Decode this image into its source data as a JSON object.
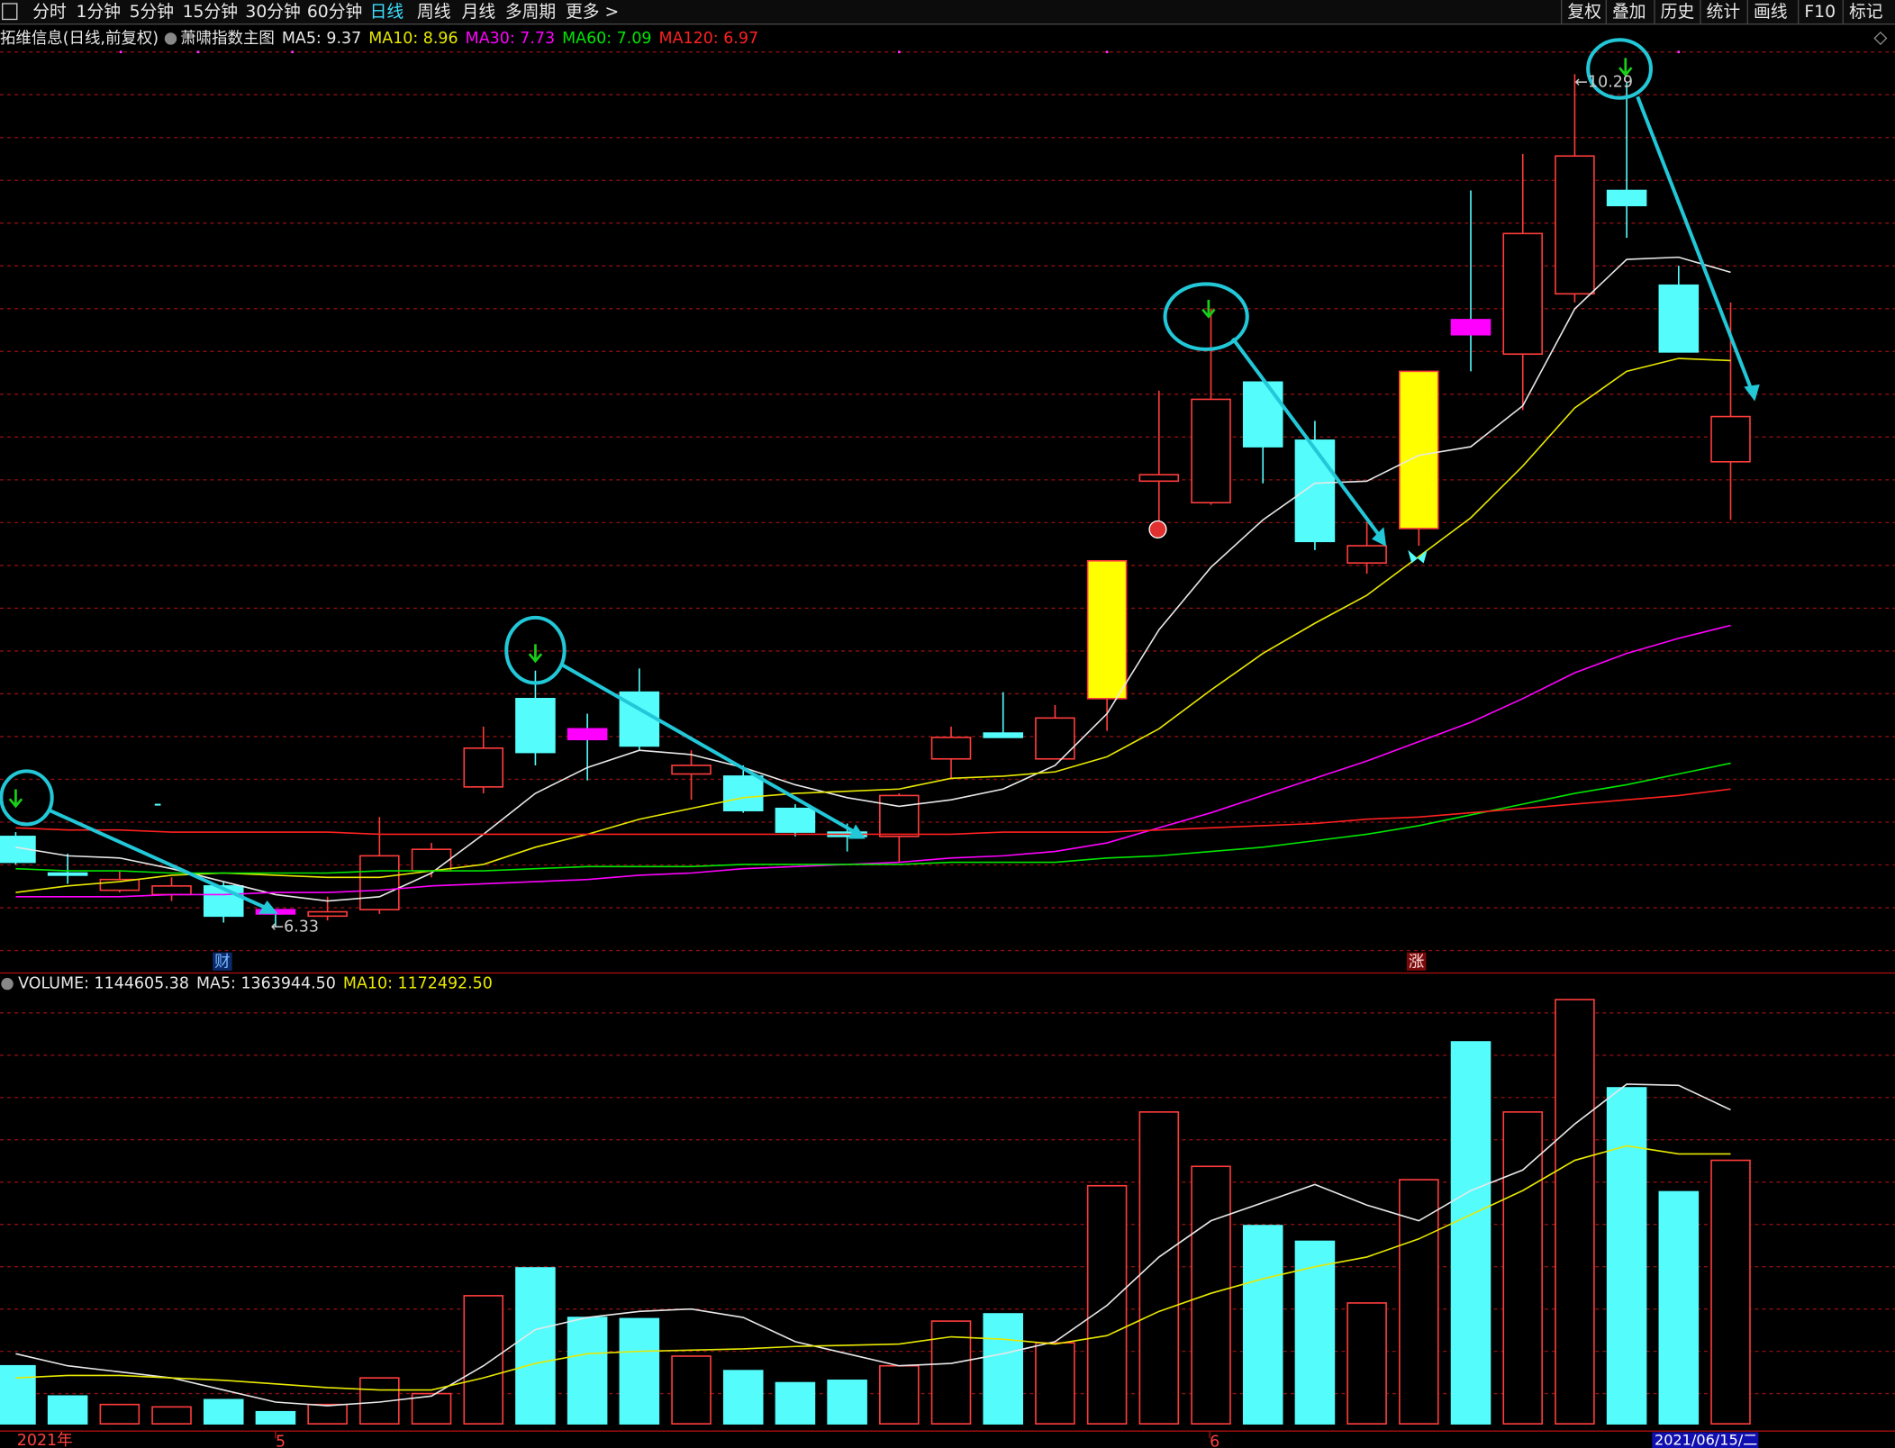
{
  "toolbar": {
    "periods": [
      {
        "label": "分时",
        "active": false
      },
      {
        "label": "1分钟",
        "active": false
      },
      {
        "label": "5分钟",
        "active": false
      },
      {
        "label": "15分钟",
        "active": false
      },
      {
        "label": "30分钟",
        "active": false
      },
      {
        "label": "60分钟",
        "active": false
      },
      {
        "label": "日线",
        "active": true
      },
      {
        "label": "周线",
        "active": false
      },
      {
        "label": "月线",
        "active": false
      },
      {
        "label": "多周期",
        "active": false
      },
      {
        "label": "更多 >",
        "active": false
      }
    ],
    "tools": [
      "复权",
      "叠加",
      "历史",
      "统计",
      "画线",
      "F10",
      "标记"
    ]
  },
  "chart_data": {
    "type": "candlestick",
    "title": "拓维信息(日线,前复权)",
    "indicator": "萧啸指数主图",
    "up_color": "#ff3c3c",
    "down_color": "#54fcfc",
    "open": [
      6.75,
      6.58,
      6.5,
      6.48,
      6.52,
      6.41,
      6.38,
      6.41,
      6.59,
      6.98,
      7.39,
      7.25,
      7.42,
      7.04,
      7.03,
      6.88,
      6.77,
      6.75,
      7.11,
      7.23,
      7.11,
      7.39,
      8.4,
      8.3,
      8.86,
      8.59,
      8.02,
      8.18,
      9.15,
      8.99,
      9.27,
      9.75,
      9.31,
      8.49
    ],
    "high": [
      6.77,
      6.67,
      6.59,
      6.56,
      6.54,
      6.41,
      6.47,
      6.84,
      6.72,
      7.26,
      7.52,
      7.32,
      7.53,
      7.15,
      7.08,
      6.9,
      6.81,
      6.95,
      7.26,
      7.42,
      7.36,
      8.03,
      8.82,
      9.2,
      8.86,
      8.68,
      8.21,
      8.91,
      9.75,
      9.92,
      10.29,
      10.25,
      9.4,
      9.23
    ],
    "low": [
      6.62,
      6.53,
      6.49,
      6.45,
      6.35,
      6.33,
      6.36,
      6.39,
      6.56,
      6.95,
      7.08,
      7.01,
      7.15,
      6.92,
      6.86,
      6.75,
      6.68,
      6.63,
      7.02,
      7.21,
      7.11,
      7.24,
      8.2,
      8.29,
      8.39,
      8.08,
      7.97,
      8.1,
      8.91,
      8.73,
      9.23,
      9.53,
      9.0,
      8.22
    ],
    "close": [
      6.63,
      6.57,
      6.55,
      6.52,
      6.38,
      6.39,
      6.4,
      6.66,
      6.69,
      7.16,
      7.14,
      7.2,
      7.17,
      7.08,
      6.87,
      6.77,
      6.75,
      6.94,
      7.21,
      7.21,
      7.3,
      8.03,
      8.43,
      8.78,
      8.56,
      8.12,
      8.1,
      8.91,
      9.08,
      9.55,
      9.91,
      9.68,
      9.0,
      8.7
    ],
    "colors": [
      "#54fcfc",
      "#54fcfc",
      "#ff3c3c",
      "#ff3c3c",
      "#54fcfc",
      "#ff00ff",
      "#ff3c3c",
      "#ff3c3c",
      "#ff3c3c",
      "#ff3c3c",
      "#54fcfc",
      "#ff00ff",
      "#54fcfc",
      "#ff3c3c",
      "#54fcfc",
      "#54fcfc",
      "#54fcfc",
      "#ff3c3c",
      "#ff3c3c",
      "#54fcfc",
      "#ff3c3c",
      "#ffff00",
      "#ff3c3c",
      "#ff3c3c",
      "#54fcfc",
      "#54fcfc",
      "#ff3c3c",
      "#ffff00",
      "#ff00ff",
      "#ff3c3c",
      "#ff3c3c",
      "#54fcfc",
      "#54fcfc",
      "#ff3c3c"
    ],
    "ylim": [
      6.2,
      10.41
    ],
    "series": [
      {
        "name": "MA5: 9.37",
        "color": "#e8e8e8",
        "values": [
          6.7,
          6.66,
          6.65,
          6.6,
          6.54,
          6.48,
          6.45,
          6.47,
          6.58,
          6.76,
          6.95,
          7.07,
          7.15,
          7.13,
          7.07,
          6.99,
          6.93,
          6.89,
          6.92,
          6.97,
          7.08,
          7.32,
          7.71,
          8.0,
          8.22,
          8.39,
          8.4,
          8.52,
          8.56,
          8.75,
          9.2,
          9.43,
          9.44,
          9.37
        ]
      },
      {
        "name": "MA10: 8.96",
        "color": "#e8e800",
        "values": [
          6.49,
          6.52,
          6.54,
          6.57,
          6.58,
          6.57,
          6.56,
          6.56,
          6.59,
          6.62,
          6.7,
          6.76,
          6.83,
          6.88,
          6.93,
          6.95,
          6.96,
          6.97,
          7.02,
          7.03,
          7.05,
          7.12,
          7.25,
          7.43,
          7.6,
          7.74,
          7.87,
          8.05,
          8.23,
          8.47,
          8.74,
          8.91,
          8.97,
          8.96
        ]
      },
      {
        "name": "MA30: 7.73",
        "color": "#ff00ff",
        "values": [
          6.47,
          6.47,
          6.47,
          6.48,
          6.48,
          6.49,
          6.49,
          6.5,
          6.52,
          6.53,
          6.54,
          6.55,
          6.57,
          6.58,
          6.6,
          6.61,
          6.62,
          6.63,
          6.65,
          6.66,
          6.68,
          6.72,
          6.79,
          6.86,
          6.94,
          7.02,
          7.1,
          7.19,
          7.28,
          7.39,
          7.51,
          7.6,
          7.67,
          7.73
        ]
      },
      {
        "name": "MA60: 7.09",
        "color": "#00e600",
        "values": [
          6.6,
          6.59,
          6.59,
          6.58,
          6.58,
          6.58,
          6.58,
          6.59,
          6.59,
          6.59,
          6.6,
          6.61,
          6.61,
          6.61,
          6.62,
          6.62,
          6.62,
          6.62,
          6.63,
          6.63,
          6.63,
          6.65,
          6.66,
          6.68,
          6.7,
          6.73,
          6.76,
          6.8,
          6.85,
          6.9,
          6.95,
          6.99,
          7.04,
          7.09
        ]
      },
      {
        "name": "MA120: 6.97",
        "color": "#ff2020",
        "values": [
          6.79,
          6.78,
          6.78,
          6.77,
          6.77,
          6.77,
          6.77,
          6.76,
          6.76,
          6.76,
          6.76,
          6.76,
          6.76,
          6.76,
          6.76,
          6.76,
          6.76,
          6.76,
          6.76,
          6.77,
          6.77,
          6.77,
          6.78,
          6.79,
          6.8,
          6.81,
          6.83,
          6.84,
          6.86,
          6.88,
          6.9,
          6.92,
          6.94,
          6.97
        ]
      }
    ],
    "annotations": [
      "←6.33",
      "←10.29"
    ],
    "markers": [
      "财",
      "涨"
    ],
    "volume": {
      "title": "VOLUME: 1144605.38",
      "ylim": [
        0,
        1879500
      ],
      "values": [
        252000,
        120750,
        84000,
        73500,
        105000,
        52500,
        84000,
        199500,
        131250,
        556500,
        677250,
        462000,
        456750,
        294000,
        231000,
        178500,
        189000,
        252000,
        446250,
        477750,
        351750,
        1034250,
        1354500,
        1118250,
        861000,
        792750,
        525000,
        1060500,
        1659000,
        1354500,
        1842750,
        1459500,
        1008000,
        1144605.38
      ],
      "series": [
        {
          "name": "MA5: 1363944.50",
          "color": "#e8e8e8",
          "values": [
            304500,
            252000,
            225750,
            199500,
            147000,
            94500,
            78750,
            94500,
            120750,
            252000,
            409500,
            462000,
            488250,
            498750,
            462000,
            357000,
            304500,
            252000,
            262500,
            304500,
            357000,
            514500,
            724500,
            882000,
            960750,
            1039500,
            950250,
            882000,
            1013250,
            1102500,
            1302000,
            1475250,
            1470000,
            1363944.5
          ]
        },
        {
          "name": "MA10: 1172492.50",
          "color": "#e8e800",
          "values": [
            199500,
            210000,
            210000,
            199500,
            189000,
            173250,
            157500,
            147000,
            147000,
            199500,
            262500,
            304500,
            315000,
            320250,
            325500,
            336000,
            341250,
            346500,
            378000,
            367500,
            346500,
            383250,
            488250,
            567000,
            630000,
            682500,
            724500,
            803250,
            908250,
            1013250,
            1144500,
            1207500,
            1172492.5,
            1172492.5
          ]
        }
      ]
    },
    "x_labels": [
      "2021年",
      "5",
      "6",
      "2021/06/15/二"
    ]
  }
}
